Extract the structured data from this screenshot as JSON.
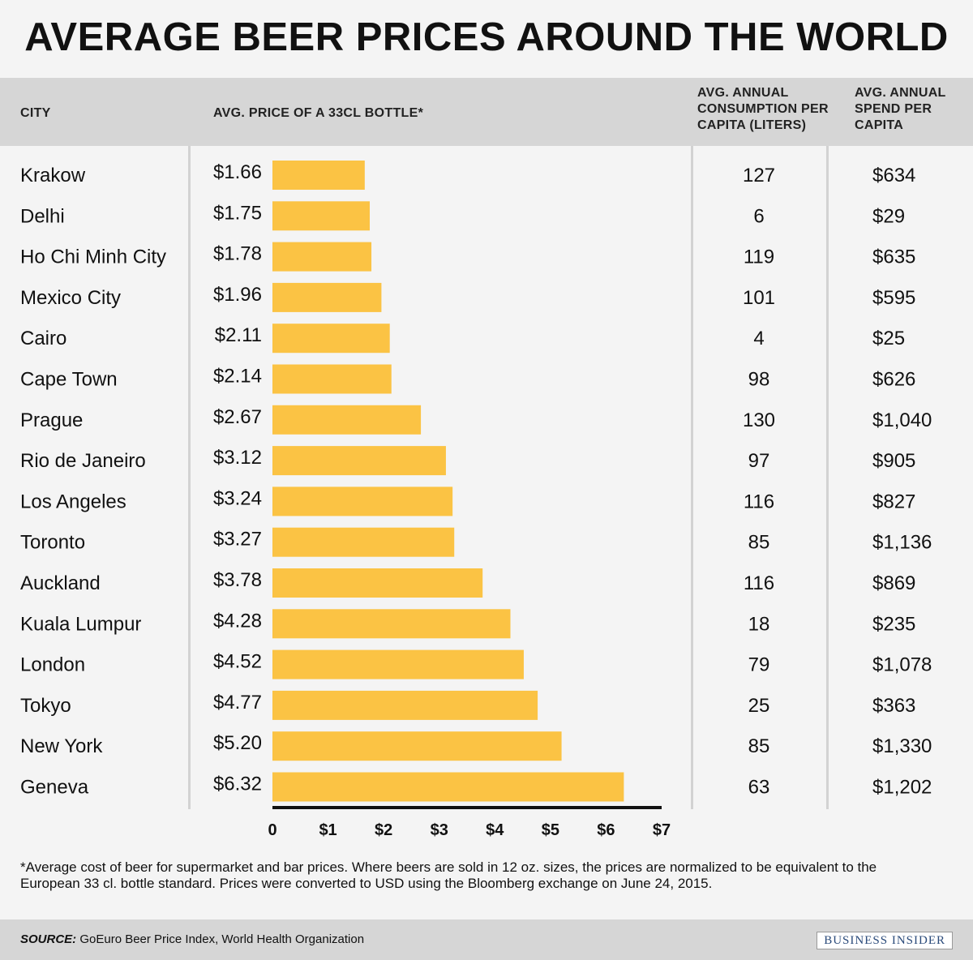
{
  "title": "AVERAGE BEER PRICES AROUND THE WORLD",
  "header": {
    "city": "CITY",
    "price": "AVG. PRICE OF A 33CL BOTTLE*",
    "consumption_lines": [
      "AVG. ANNUAL",
      "CONSUMPTION PER",
      "CAPITA (LITERS)"
    ],
    "spend_lines": [
      "AVG. ANNUAL",
      "SPEND PER",
      "CAPITA"
    ]
  },
  "chart_data": {
    "type": "bar",
    "orientation": "horizontal",
    "title": "AVERAGE BEER PRICES AROUND THE WORLD",
    "categories": [
      "Krakow",
      "Delhi",
      "Ho Chi Minh City",
      "Mexico City",
      "Cairo",
      "Cape Town",
      "Prague",
      "Rio de Janeiro",
      "Los Angeles",
      "Toronto",
      "Auckland",
      "Kuala Lumpur",
      "London",
      "Tokyo",
      "New York",
      "Geneva"
    ],
    "values": [
      1.66,
      1.75,
      1.78,
      1.96,
      2.11,
      2.14,
      2.67,
      3.12,
      3.24,
      3.27,
      3.78,
      4.28,
      4.52,
      4.77,
      5.2,
      6.32
    ],
    "value_labels": [
      "$1.66",
      "$1.75",
      "$1.78",
      "$1.96",
      "$2.11",
      "$2.14",
      "$2.67",
      "$3.12",
      "$3.24",
      "$3.27",
      "$3.78",
      "$4.28",
      "$4.52",
      "$4.77",
      "$5.20",
      "$6.32"
    ],
    "consumption_liters": [
      "127",
      "6",
      "119",
      "101",
      "4",
      "98",
      "130",
      "97",
      "116",
      "85",
      "116",
      "18",
      "79",
      "25",
      "85",
      "63"
    ],
    "annual_spend": [
      "$634",
      "$29",
      "$635",
      "$595",
      "$25",
      "$626",
      "$1,040",
      "$905",
      "$827",
      "$1,136",
      "$869",
      "$235",
      "$1,078",
      "$363",
      "$1,330",
      "$1,202"
    ],
    "xlim": [
      0,
      7
    ],
    "x_ticks": [
      0,
      1,
      2,
      3,
      4,
      5,
      6,
      7
    ],
    "x_tick_labels": [
      "0",
      "$1",
      "$2",
      "$3",
      "$4",
      "$5",
      "$6",
      "$7"
    ],
    "bar_color": "#fbc344",
    "grid": false
  },
  "footnote": "*Average cost of beer for supermarket and bar prices. Where beers are sold in 12 oz. sizes, the prices are normalized to be equivalent to the European 33 cl. bottle standard. Prices were converted to USD using the Bloomberg exchange on June 24, 2015.",
  "source": {
    "label": "SOURCE:",
    "text": " GoEuro Beer Price Index, World Health Organization"
  },
  "brand": "BUSINESS INSIDER"
}
